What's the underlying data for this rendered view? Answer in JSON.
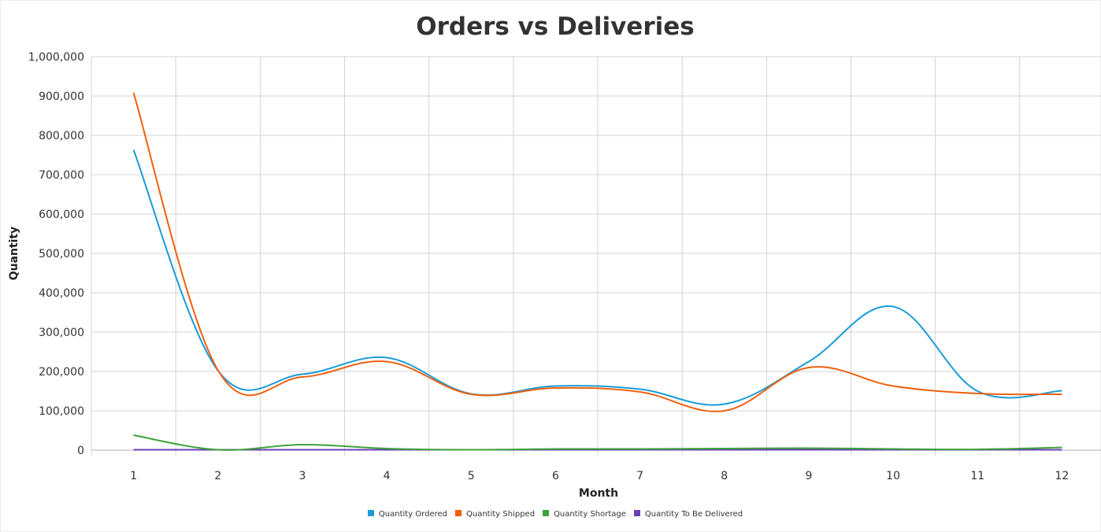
{
  "chart_data": {
    "type": "line",
    "title": "Orders vs Deliveries",
    "xlabel": "Month",
    "ylabel": "Quantity",
    "categories": [
      "1",
      "2",
      "3",
      "4",
      "5",
      "6",
      "7",
      "8",
      "9",
      "10",
      "11",
      "12"
    ],
    "ylim": [
      0,
      1000000
    ],
    "yticks": [
      "0",
      "100,000",
      "200,000",
      "300,000",
      "400,000",
      "500,000",
      "600,000",
      "700,000",
      "800,000",
      "900,000",
      "1,000,000"
    ],
    "grid": true,
    "legend_position": "bottom",
    "series": [
      {
        "name": "Quantity Ordered",
        "color": "#1a9bd7",
        "values": [
          763000,
          202000,
          193000,
          235000,
          143000,
          163000,
          155000,
          117000,
          225000,
          365000,
          150000,
          151000
        ]
      },
      {
        "name": "Quantity Shipped",
        "color": "#f0600f",
        "values": [
          908000,
          203000,
          186000,
          225000,
          142000,
          158000,
          148000,
          100000,
          210000,
          163000,
          144000,
          142000
        ]
      },
      {
        "name": "Quantity Shortage",
        "color": "#3ea23a",
        "values": [
          38000,
          1000,
          14000,
          4000,
          1000,
          3000,
          3000,
          4000,
          5000,
          3000,
          2000,
          7000
        ]
      },
      {
        "name": "Quantity To Be Delivered",
        "color": "#6a3fb4",
        "values": [
          1000,
          1000,
          1000,
          1000,
          1000,
          1000,
          1000,
          1000,
          1000,
          1000,
          1000,
          1000
        ]
      }
    ]
  }
}
